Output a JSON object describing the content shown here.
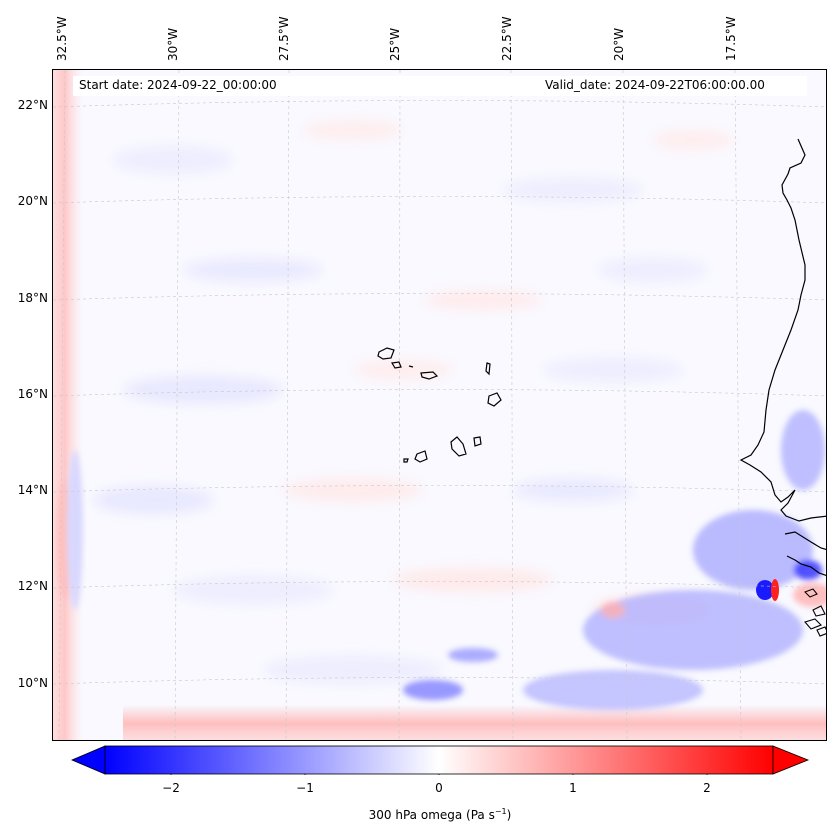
{
  "map": {
    "header": {
      "start_date": "Start date: 2024-09-22_00:00:00",
      "valid_date": "Valid_date: 2024-09-22T06:00:00.00"
    },
    "longitude_labels": [
      "32.5°W",
      "30°W",
      "27.5°W",
      "25°W",
      "22.5°W",
      "20°W",
      "17.5°W"
    ],
    "latitude_labels": [
      "22°N",
      "20°N",
      "18°N",
      "16°N",
      "14°N",
      "12°N",
      "10°N"
    ],
    "features": [
      "Cape Verde islands",
      "West African coastline"
    ],
    "gridlines": "dashed",
    "colors": {
      "negative": "#0000ff",
      "zero": "#ffffff",
      "positive": "#ff0000",
      "coastline": "#000000"
    }
  },
  "colorbar": {
    "ticks": [
      "−2",
      "−1",
      "0",
      "1",
      "2"
    ],
    "tick_values": [
      -2,
      -1,
      0,
      1,
      2
    ],
    "range": [
      -2.5,
      2.5
    ],
    "extend": "both",
    "label_prefix": "300 hPa omega (Pa s",
    "label_exp": "−1",
    "label_suffix": ")"
  }
}
